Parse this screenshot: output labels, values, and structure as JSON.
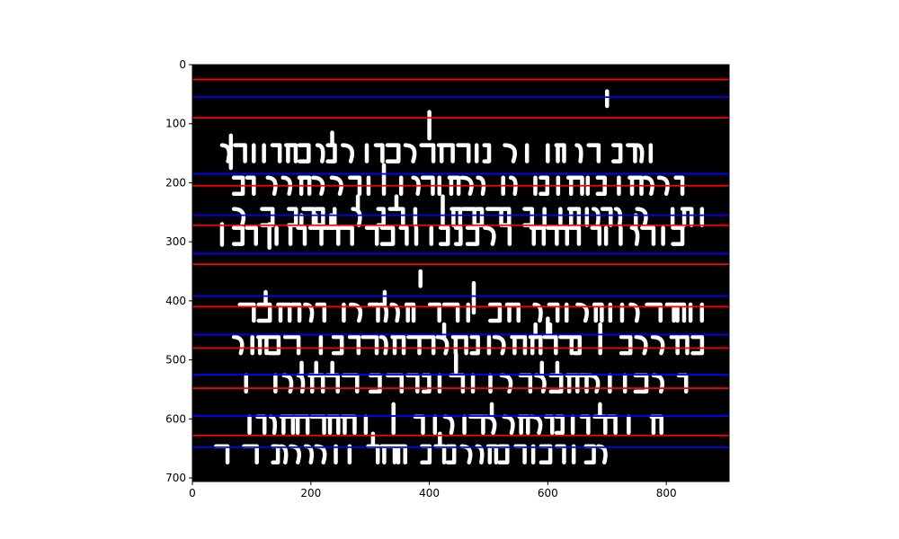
{
  "chart_data": {
    "type": "heatmap",
    "title": "",
    "xlabel": "",
    "ylabel": "",
    "xlim": [
      0,
      906
    ],
    "ylim": [
      706,
      0
    ],
    "x_ticks": [
      0,
      200,
      400,
      600,
      800
    ],
    "y_ticks": [
      0,
      100,
      200,
      300,
      400,
      500,
      600,
      700
    ],
    "background_color": "#000000",
    "image_content": "binarized handwritten Hebrew manuscript, white strokes on black",
    "series": [
      {
        "color": "#ff0000",
        "y": [
          25,
          90,
          205,
          272,
          338,
          410,
          480,
          548,
          628
        ]
      },
      {
        "color": "#0000ff",
        "y": [
          55,
          185,
          255,
          320,
          392,
          457,
          525,
          595,
          648
        ]
      }
    ]
  }
}
